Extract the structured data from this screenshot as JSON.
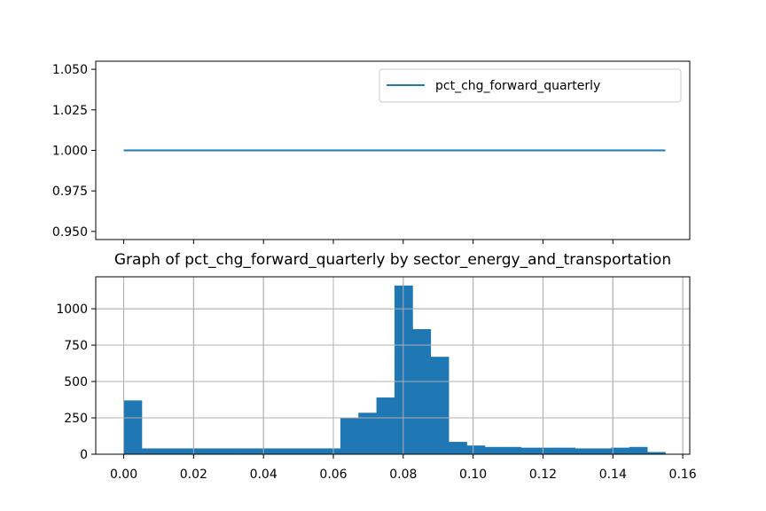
{
  "chart_data": [
    {
      "type": "line",
      "series": [
        {
          "name": "pct_chg_forward_quarterly",
          "x": [
            0.0,
            0.155
          ],
          "values": [
            1.0,
            1.0
          ]
        }
      ],
      "xlim": [
        -0.008,
        0.162
      ],
      "ylim": [
        0.945,
        1.055
      ],
      "yticks": [
        0.95,
        0.975,
        1.0,
        1.025,
        1.05
      ],
      "ytick_labels": [
        "0.950",
        "0.975",
        "1.000",
        "1.025",
        "1.050"
      ],
      "xticks": [
        0.0,
        0.02,
        0.04,
        0.06,
        0.08,
        0.1,
        0.12,
        0.14
      ],
      "legend_position": "top-right",
      "grid": false,
      "color": "#1f77b4"
    },
    {
      "type": "bar",
      "title": "Graph of pct_chg_forward_quarterly by sector_energy_and_transportation",
      "bin_width": 0.00517,
      "bin_starts": [
        0.0,
        0.00517,
        0.01033,
        0.0155,
        0.02067,
        0.02583,
        0.031,
        0.03617,
        0.04133,
        0.0465,
        0.05167,
        0.05683,
        0.062,
        0.06717,
        0.07233,
        0.0775,
        0.08267,
        0.08783,
        0.093,
        0.09817,
        0.10333,
        0.1085,
        0.11367,
        0.11883,
        0.124,
        0.12917,
        0.13433,
        0.1395,
        0.14467,
        0.14983
      ],
      "values": [
        370,
        40,
        40,
        40,
        40,
        40,
        40,
        40,
        40,
        40,
        40,
        40,
        250,
        285,
        390,
        1160,
        860,
        670,
        85,
        60,
        50,
        50,
        45,
        45,
        45,
        40,
        40,
        45,
        50,
        15
      ],
      "xlim": [
        -0.008,
        0.162
      ],
      "ylim": [
        0,
        1220
      ],
      "yticks": [
        0,
        250,
        500,
        750,
        1000
      ],
      "ytick_labels": [
        "0",
        "250",
        "500",
        "750",
        "1000"
      ],
      "xticks": [
        0.0,
        0.02,
        0.04,
        0.06,
        0.08,
        0.1,
        0.12,
        0.14,
        0.16
      ],
      "xtick_labels": [
        "0.00",
        "0.02",
        "0.04",
        "0.06",
        "0.08",
        "0.10",
        "0.12",
        "0.14",
        "0.16"
      ],
      "grid": true,
      "color": "#1f77b4",
      "grid_color": "#b0b0b0"
    }
  ]
}
